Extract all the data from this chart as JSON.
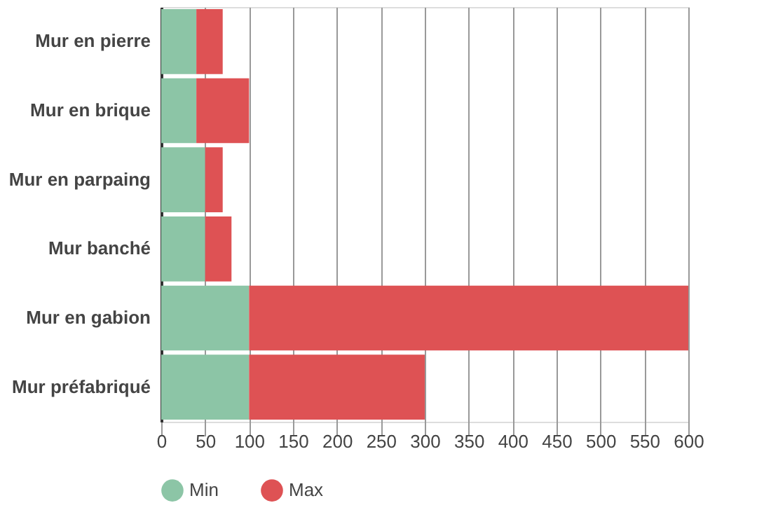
{
  "chart_data": {
    "type": "bar",
    "orientation": "horizontal",
    "stacked": true,
    "categories": [
      "Mur en pierre",
      "Mur en brique",
      "Mur en parpaing",
      "Mur banché",
      "Mur en gabion",
      "Mur préfabriqué"
    ],
    "series": [
      {
        "name": "Min",
        "color": "#8cc5a6",
        "values": [
          40,
          40,
          50,
          50,
          100,
          100
        ]
      },
      {
        "name": "Max",
        "color": "#de5254",
        "values": [
          30,
          60,
          20,
          30,
          500,
          200
        ]
      }
    ],
    "xlim": [
      0,
      600
    ],
    "xticks": [
      0,
      50,
      100,
      150,
      200,
      250,
      300,
      350,
      400,
      450,
      500,
      550,
      600
    ],
    "grid": "x",
    "legend": "bottom"
  }
}
